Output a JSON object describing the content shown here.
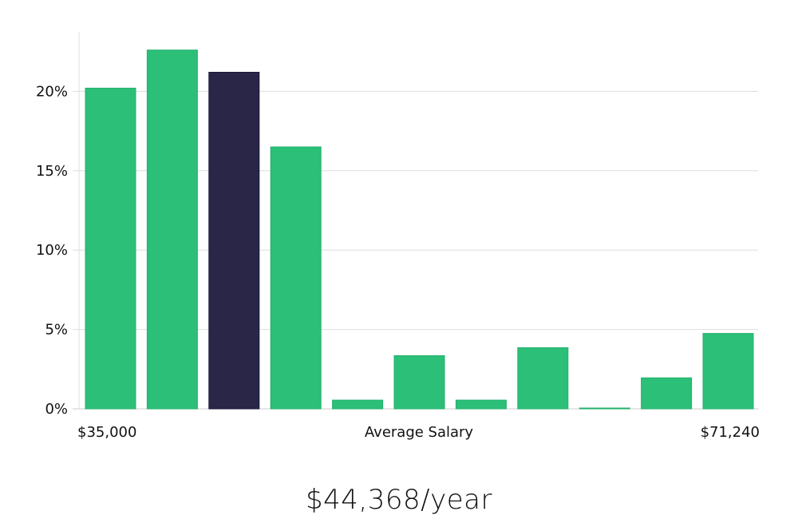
{
  "chart_data": {
    "type": "bar",
    "title": "",
    "xlabel": "Average Salary",
    "ylabel": "",
    "x_min_label": "$35,000",
    "x_max_label": "$71,240",
    "ylim": [
      0,
      24
    ],
    "yticks": [
      0,
      5,
      10,
      15,
      20
    ],
    "ytick_labels": [
      "0%",
      "5%",
      "10%",
      "15%",
      "20%"
    ],
    "values": [
      20.2,
      22.6,
      21.2,
      16.5,
      0.55,
      3.35,
      0.55,
      3.85,
      0.05,
      1.95,
      4.75
    ],
    "highlight_index": 2,
    "grid": true,
    "colors": {
      "bar": "#2bbf78",
      "highlight": "#292647",
      "grid": "#dddddd",
      "axis": "#cccccc"
    }
  },
  "summary": {
    "salary_text": "$44,368/year"
  }
}
